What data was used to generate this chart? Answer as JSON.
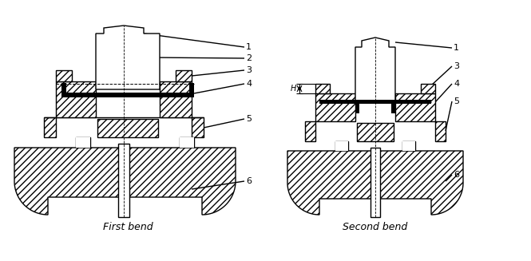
{
  "bg_color": "#ffffff",
  "label_first_bend": "First bend",
  "label_second_bend": "Second bend",
  "font_size_number": 8,
  "font_size_title": 9
}
